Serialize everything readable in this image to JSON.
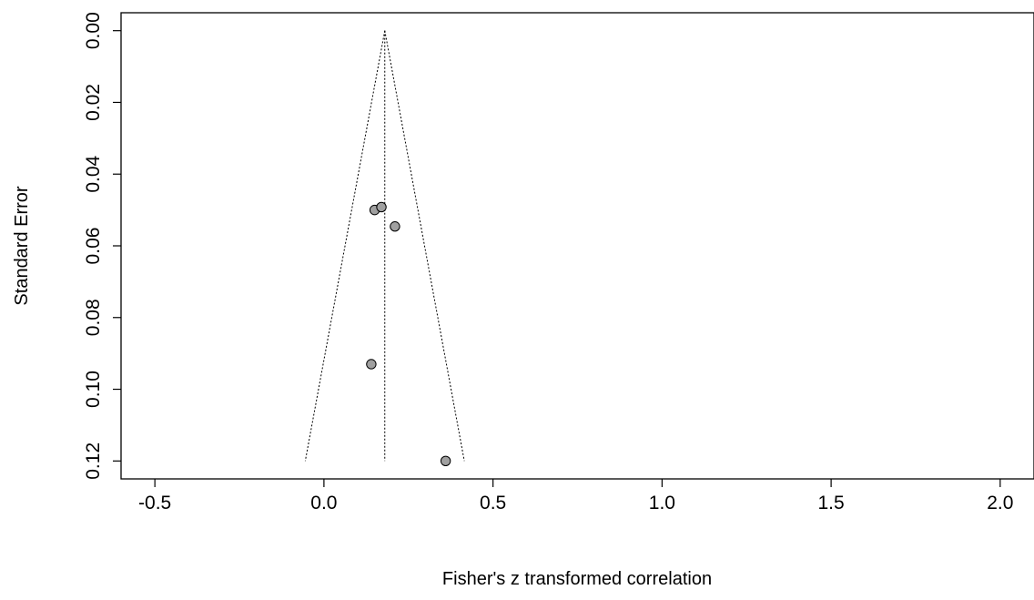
{
  "chart_data": {
    "type": "scatter",
    "title": "",
    "xlabel": "Fisher's z transformed correlation",
    "ylabel": "Standard Error",
    "xlim": [
      -0.6,
      2.1
    ],
    "ylim": [
      0.125,
      -0.005
    ],
    "x_ticks": [
      -0.5,
      0.0,
      0.5,
      1.0,
      1.5,
      2.0
    ],
    "x_tick_labels": [
      "-0.5",
      "0.0",
      "0.5",
      "1.0",
      "1.5",
      "2.0"
    ],
    "y_ticks": [
      0.0,
      0.02,
      0.04,
      0.06,
      0.08,
      0.1,
      0.12
    ],
    "y_tick_labels": [
      "0.00",
      "0.02",
      "0.04",
      "0.06",
      "0.08",
      "0.10",
      "0.12"
    ],
    "y_reversed": true,
    "grid": false,
    "pooled_estimate": 0.18,
    "funnel_se_max": 0.12,
    "points": [
      {
        "x": 0.15,
        "y": 0.05
      },
      {
        "x": 0.17,
        "y": 0.0492
      },
      {
        "x": 0.21,
        "y": 0.0546
      },
      {
        "x": 0.14,
        "y": 0.093
      },
      {
        "x": 0.36,
        "y": 0.12
      }
    ],
    "colors": {
      "point_fill": "#a0a0a0",
      "point_stroke": "#000000",
      "axis": "#000000"
    }
  }
}
